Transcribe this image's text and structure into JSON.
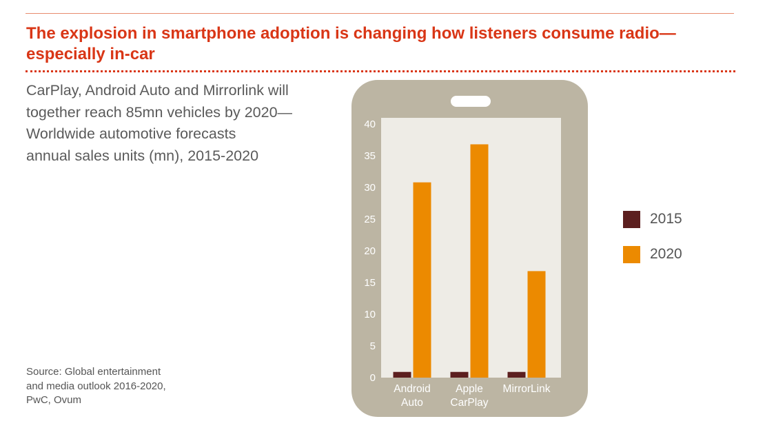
{
  "headline": "The explosion in smartphone adoption is changing how listeners consume radio—especially in-car",
  "subtitle_lines": [
    "CarPlay, Android Auto and Mirrorlink will",
    "together reach 85mn vehicles by 2020—",
    "Worldwide automotive forecasts",
    "annual sales units (mn), 2015-2020"
  ],
  "source_lines": [
    "Source: Global entertainment",
    "and media outlook 2016-2020,",
    "PwC, Ovum"
  ],
  "colors": {
    "accent": "#d93616",
    "series_2015": "#5c1f1f",
    "series_2020": "#ec8a00",
    "phone_body": "#bcb5a3",
    "screen": "#eeece6"
  },
  "chart_data": {
    "type": "bar",
    "title": "",
    "xlabel": "",
    "ylabel": "",
    "ylim": [
      0,
      40
    ],
    "yticks": [
      0,
      5,
      10,
      15,
      20,
      25,
      30,
      35,
      40
    ],
    "categories": [
      [
        "Android",
        "Auto"
      ],
      [
        "Apple",
        "CarPlay"
      ],
      [
        "MirrorLink"
      ]
    ],
    "series": [
      {
        "name": "2015",
        "color": "#5c1f1f",
        "values": [
          0.9,
          0.9,
          0.9
        ]
      },
      {
        "name": "2020",
        "color": "#ec8a00",
        "values": [
          30.8,
          36.8,
          16.8
        ]
      }
    ],
    "legend_position": "right"
  }
}
